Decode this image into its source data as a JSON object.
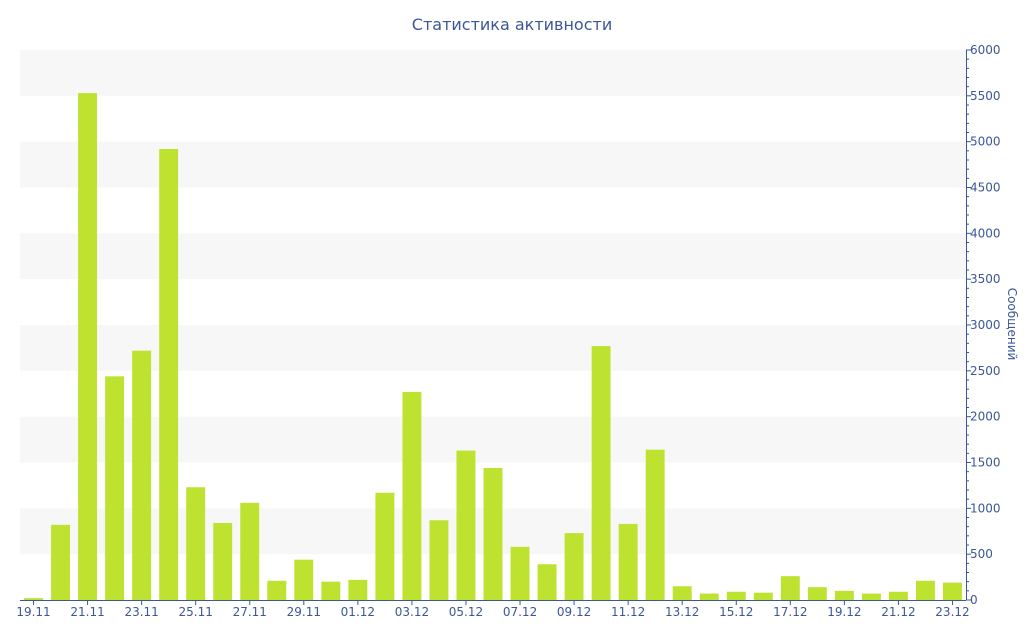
{
  "chart_data": {
    "type": "bar",
    "title": "Статистика активности",
    "ylabel": "Сообщений",
    "xlabel": "",
    "ylim": [
      0,
      6000
    ],
    "yticks": [
      0,
      500,
      1000,
      1500,
      2000,
      2500,
      3000,
      3500,
      4000,
      4500,
      5000,
      5500,
      6000
    ],
    "y_axis_side": "right",
    "grid": "alternating horizontal bands",
    "bar_color": "#bde22f",
    "band_color": "#f7f7f7",
    "text_color": "#3c5796",
    "categories": [
      "19.11",
      "20.11",
      "21.11",
      "22.11",
      "23.11",
      "24.11",
      "25.11",
      "26.11",
      "27.11",
      "28.11",
      "29.11",
      "30.11",
      "01.12",
      "02.12",
      "03.12",
      "04.12",
      "05.12",
      "06.12",
      "07.12",
      "08.12",
      "09.12",
      "10.12",
      "11.12",
      "12.12",
      "13.12",
      "14.12",
      "15.12",
      "16.12",
      "17.12",
      "18.12",
      "19.12",
      "20.12",
      "21.12",
      "22.12",
      "23.12"
    ],
    "tick_labels": [
      "19.11",
      "21.11",
      "23.11",
      "25.11",
      "27.11",
      "29.11",
      "01.12",
      "03.12",
      "05.12",
      "07.12",
      "09.12",
      "11.12",
      "13.12",
      "15.12",
      "17.12",
      "19.12",
      "21.12",
      "23.12"
    ],
    "values": [
      20,
      820,
      5530,
      2440,
      2720,
      4920,
      1230,
      840,
      1060,
      210,
      440,
      200,
      220,
      1170,
      2270,
      870,
      1630,
      1440,
      580,
      390,
      730,
      2770,
      830,
      1640,
      150,
      70,
      90,
      80,
      260,
      140,
      100,
      70,
      90,
      210,
      190
    ]
  }
}
